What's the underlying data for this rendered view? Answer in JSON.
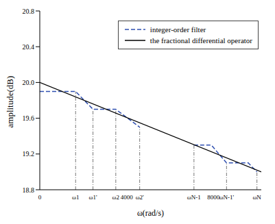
{
  "chart_data": {
    "type": "line",
    "x_label": "ω(rad/s)",
    "y_label": "amplitude(dB)",
    "xlim": [
      0,
      10200
    ],
    "xticks": [
      0,
      {
        "value": 1650,
        "label": "ω1"
      },
      {
        "value": 2450,
        "label": "ω1'"
      },
      {
        "value": 3500,
        "label": "ω2"
      },
      4000,
      {
        "value": 4600,
        "label": "ω2'"
      },
      {
        "value": 7100,
        "label": "ωN-1"
      },
      8000,
      {
        "value": 8600,
        "label": "ωN-1'"
      },
      {
        "value": 10000,
        "label": "ωN"
      }
    ],
    "ylim": [
      18.8,
      20.8
    ],
    "yticks": [
      18.8,
      19.2,
      19.6,
      {
        "value": 20,
        "label": "20.0"
      },
      20.4,
      20.8
    ],
    "grid": false,
    "legend": "upper right",
    "series": [
      {
        "name": "integer-order filter",
        "color": "#2f4fb0",
        "line_style": "dashed",
        "x": [
          0,
          1650,
          2450,
          3500,
          4600,
          5800,
          7100,
          7900,
          8600,
          9600,
          10000
        ],
        "values": [
          19.9,
          19.9,
          19.7,
          19.7,
          19.5,
          null,
          19.3,
          19.3,
          19.1,
          19.1,
          19.0
        ]
      },
      {
        "name": "the fractional differential operator",
        "color": "#000000",
        "line_style": "solid",
        "x": [
          0,
          10200
        ],
        "values": [
          20.0,
          19.0
        ]
      }
    ]
  }
}
